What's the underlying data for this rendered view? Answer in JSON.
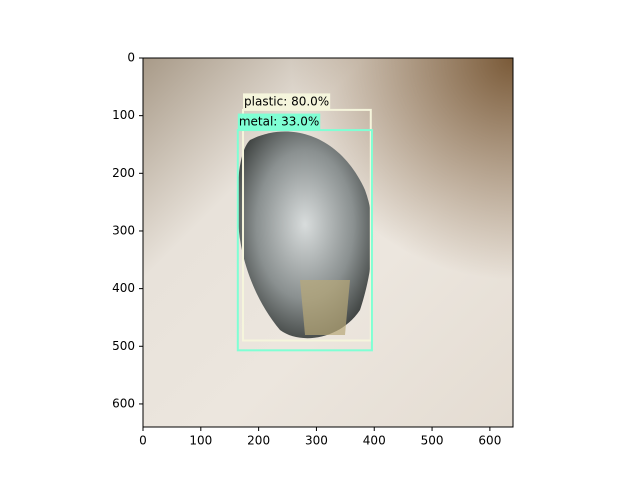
{
  "chart_data": {
    "type": "detection",
    "xlim": [
      0,
      640
    ],
    "ylim": [
      640,
      0
    ],
    "xticks": [
      0,
      100,
      200,
      300,
      400,
      500,
      600
    ],
    "yticks": [
      0,
      100,
      200,
      300,
      400,
      500,
      600
    ],
    "boxes": [
      {
        "label": "plastic: 80.0%",
        "xmin": 173,
        "ymin": 90,
        "xmax": 394,
        "ymax": 490,
        "color": "#f5f5dc"
      },
      {
        "label": "metal: 33.0%",
        "xmin": 164,
        "ymin": 125,
        "xmax": 396,
        "ymax": 507,
        "color": "#7fffd4"
      }
    ]
  }
}
